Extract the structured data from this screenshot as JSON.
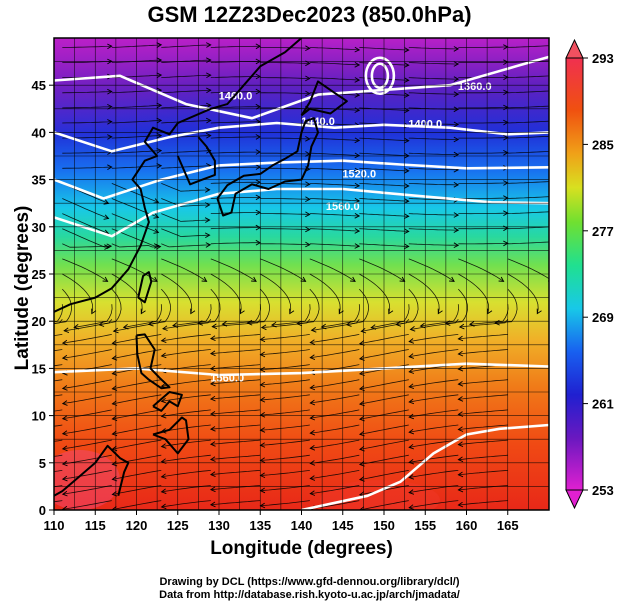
{
  "title": "GSM 12Z23Dec2023 (850.0hPa)",
  "axes": {
    "xlabel": "Longitude (degrees)",
    "ylabel": "Latitude  (degrees)",
    "xlim": [
      110,
      170
    ],
    "ylim": [
      0,
      50
    ],
    "x_ticks": [
      "110",
      "115",
      "120",
      "125",
      "130",
      "135",
      "140",
      "145",
      "150",
      "155",
      "160",
      "165"
    ],
    "y_ticks": [
      "0",
      "5",
      "10",
      "15",
      "20",
      "25",
      "30",
      "35",
      "40",
      "45"
    ]
  },
  "colorbar": {
    "ticks": [
      "253",
      "261",
      "269",
      "277",
      "285",
      "293"
    ],
    "range": [
      253,
      293
    ],
    "colors": [
      "#e020d0",
      "#3a18c8",
      "#1a4cf0",
      "#18c8e8",
      "#20e070",
      "#a0e830",
      "#f0d020",
      "#f07010",
      "#e82010",
      "#f04060"
    ]
  },
  "contour_labels": [
    "1460.0",
    "1440.0",
    "1400.0",
    "1360.0",
    "1520.0",
    "1560.0",
    "1560.0"
  ],
  "credits": {
    "line1": "Drawing by DCL (https://www.gfd-dennou.org/library/dcl/)",
    "line2": "Data from http://database.rish.kyoto-u.ac.jp/arch/jmadata/"
  }
}
